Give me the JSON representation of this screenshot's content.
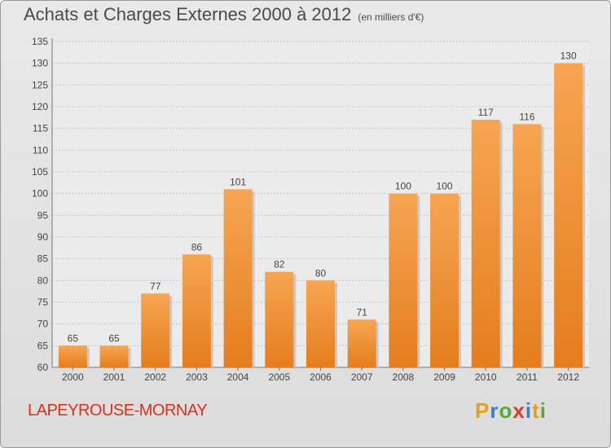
{
  "title": "Achats et Charges Externes 2000 à 2012",
  "unit_note": "(en milliers d'€)",
  "commune": "LAPEYROUSE-MORNAY",
  "logo_text": "Proxiti",
  "colors": {
    "bar_light": "#f6a552",
    "bar_dark": "#e57d1e",
    "commune": "#d9301c",
    "logo": [
      "#e3a11a",
      "#3a7ec9",
      "#5aa63a",
      "#e03a2a",
      "#3a7ec9",
      "#e3a11a",
      "#5aa63a"
    ]
  },
  "chart_data": {
    "type": "bar",
    "title": "Achats et Charges Externes 2000 à 2012",
    "ylabel": "(en milliers d'€)",
    "categories": [
      "2000",
      "2001",
      "2002",
      "2003",
      "2004",
      "2005",
      "2006",
      "2007",
      "2008",
      "2009",
      "2010",
      "2011",
      "2012"
    ],
    "values": [
      65,
      65,
      77,
      86,
      101,
      82,
      80,
      71,
      100,
      100,
      117,
      116,
      130
    ],
    "ylim": [
      60,
      135
    ],
    "yticks": [
      60,
      65,
      70,
      75,
      80,
      85,
      90,
      95,
      100,
      105,
      110,
      115,
      120,
      125,
      130,
      135
    ],
    "grid": true
  }
}
